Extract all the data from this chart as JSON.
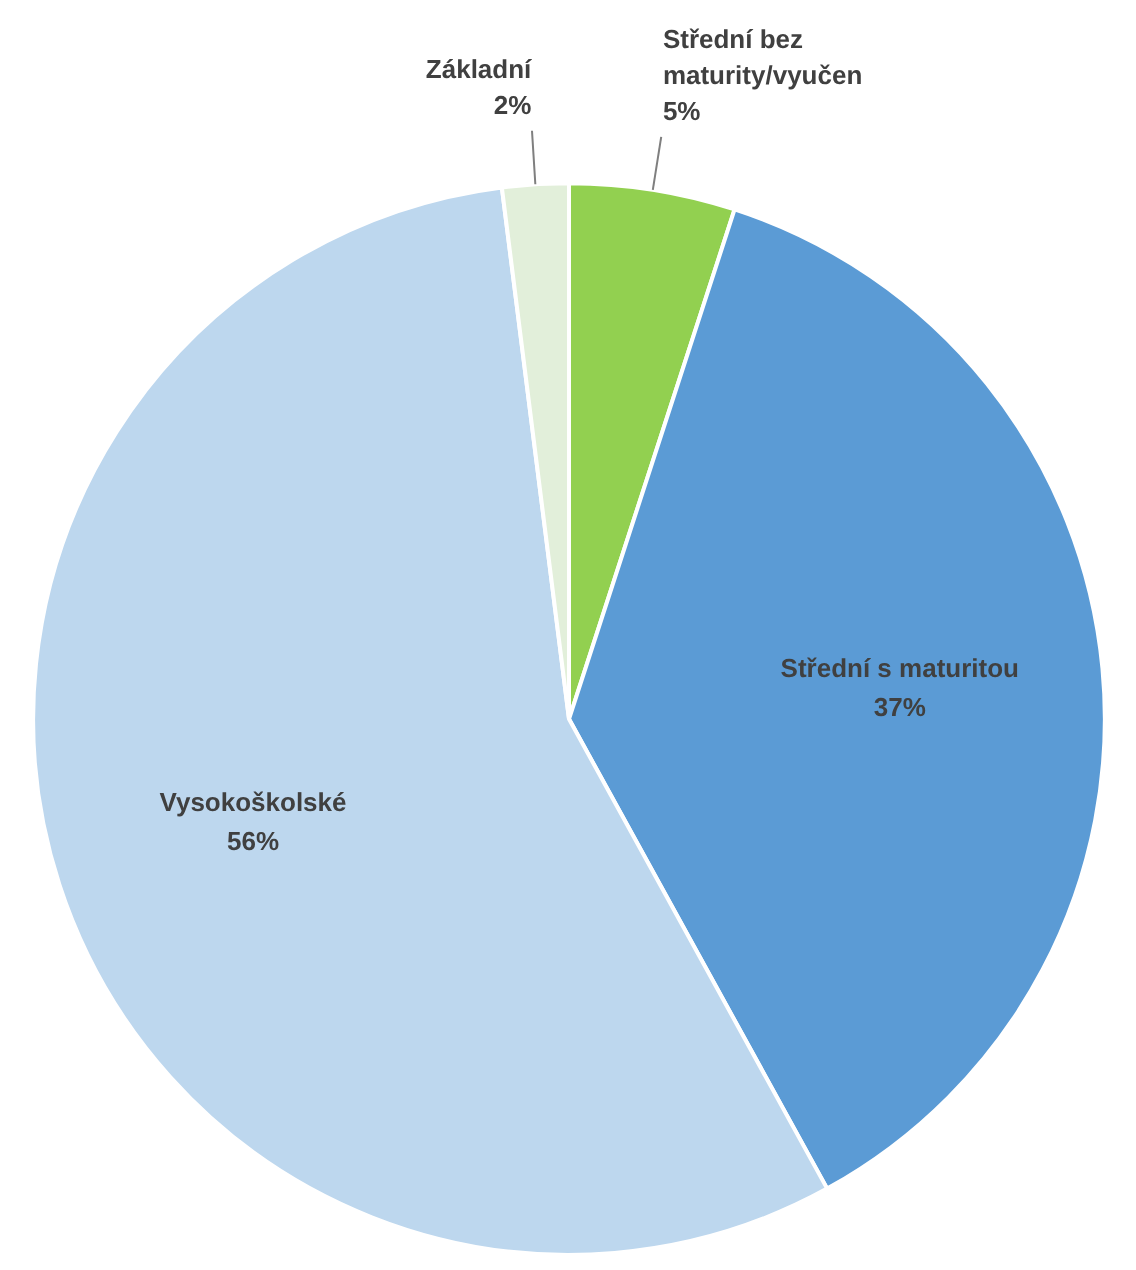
{
  "chart_data": {
    "type": "pie",
    "categories": [
      "Střední bez maturity/vyučen",
      "Střední s maturitou",
      "Vysokoškolské",
      "Základní"
    ],
    "values": [
      5,
      37,
      56,
      2
    ],
    "colors": [
      "#92d050",
      "#5b9bd5",
      "#bdd7ee",
      "#e2efda"
    ],
    "value_labels": [
      "5%",
      "37%",
      "56%",
      "2%"
    ]
  }
}
